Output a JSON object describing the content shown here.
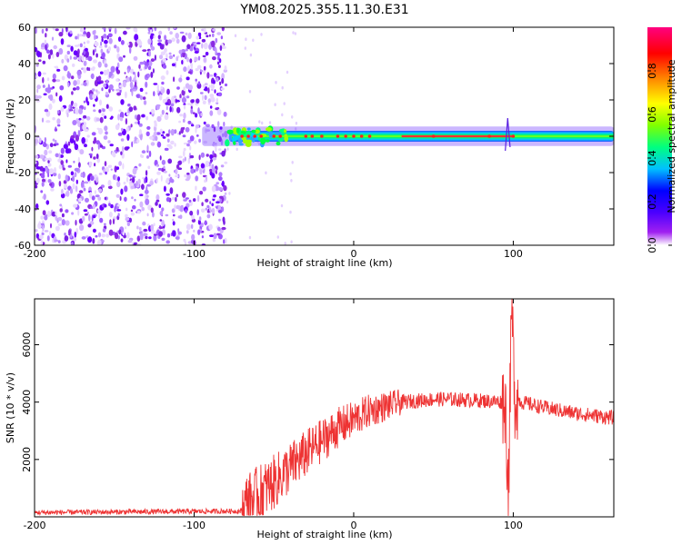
{
  "title": "YM08.2025.355.11.30.E31",
  "colors": {
    "trace": "#ee3333",
    "noise_dots": "#8a2be2",
    "frame": "#000000"
  },
  "chart_data": [
    {
      "type": "heatmap",
      "name": "spectrogram",
      "xlabel": "Height of straight line (km)",
      "ylabel": "Frequency (Hz)",
      "xlim": [
        -200,
        163
      ],
      "ylim": [
        -60,
        60
      ],
      "xticks": [
        -200,
        -100,
        0,
        100
      ],
      "yticks": [
        -60,
        -40,
        -20,
        0,
        20,
        40,
        60
      ],
      "colorbar": {
        "label": "Normalized spectral amplitude",
        "range": [
          0.0,
          1.0
        ],
        "ticks": [
          "0.0",
          "0.2",
          "0.4",
          "0.6",
          "0.8"
        ],
        "colormap": [
          "#ffffff",
          "#a020f0",
          "#4b00ff",
          "#0000ff",
          "#00c0ff",
          "#00ff80",
          "#80ff00",
          "#ffff00",
          "#ff8000",
          "#ff0000",
          "#ff0080"
        ]
      },
      "regions": {
        "noise_x_range": [
          -200,
          -80
        ],
        "signal_x_range": [
          -95,
          163
        ],
        "signal_center_hz": 0,
        "signal_band_halfwidth_hz": 3
      }
    },
    {
      "type": "line",
      "name": "snr",
      "xlabel": "Height of straight line (km)",
      "ylabel": "SNR (10 * v/v)",
      "xlim": [
        -200,
        163
      ],
      "ylim": [
        0,
        7600
      ],
      "xticks": [
        -200,
        -100,
        0,
        100
      ],
      "yticks": [
        2000,
        4000,
        6000
      ],
      "series": [
        {
          "name": "SNR",
          "profile_x": [
            -200,
            -70,
            -68,
            -50,
            -30,
            -10,
            10,
            30,
            50,
            60,
            80,
            95,
            97,
            99,
            101,
            105,
            120,
            140,
            163
          ],
          "profile_y": [
            150,
            200,
            400,
            1200,
            2200,
            3100,
            3700,
            4000,
            4100,
            4100,
            4050,
            4000,
            1000,
            7300,
            4200,
            4000,
            3800,
            3600,
            3450
          ]
        }
      ]
    }
  ]
}
